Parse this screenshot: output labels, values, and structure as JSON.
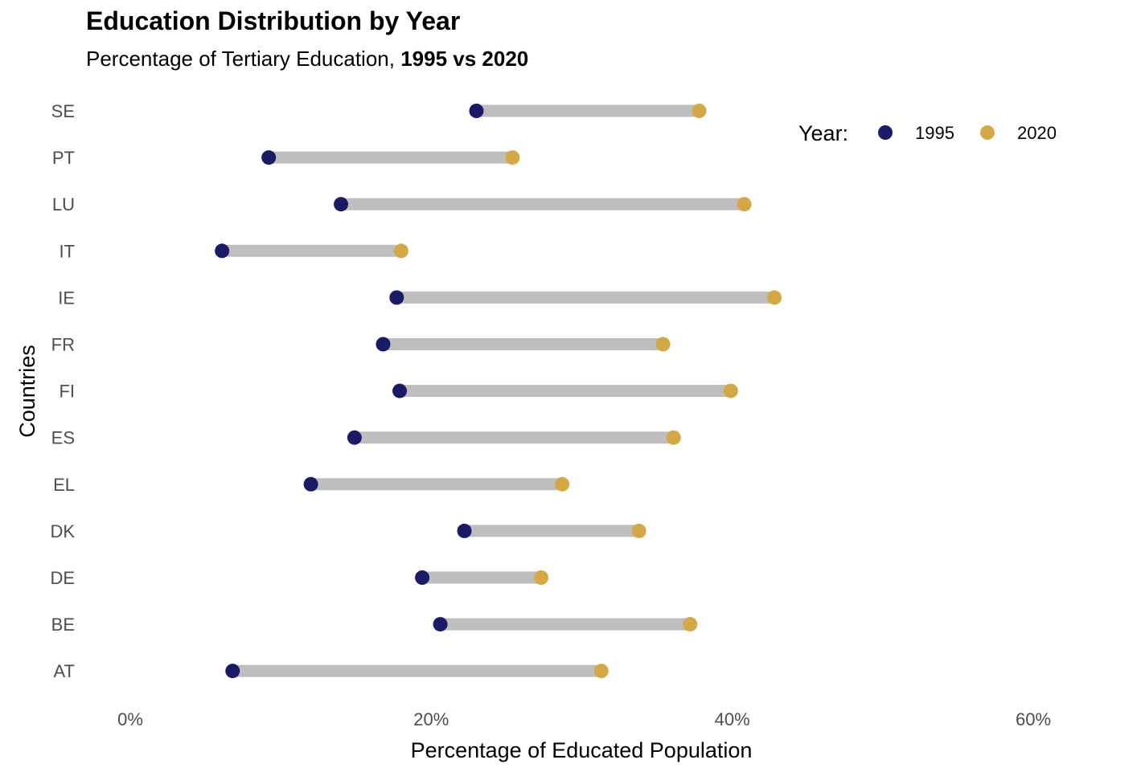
{
  "title": "Education Distribution by Year",
  "subtitle_plain": "Percentage of Tertiary Education, ",
  "subtitle_bold": "1995 vs 2020",
  "chart_data": {
    "type": "dumbbell",
    "title": "Education Distribution by Year",
    "subtitle": "Percentage of Tertiary Education, 1995 vs 2020",
    "xlabel": "Percentage of Educated Population",
    "ylabel": "Countries",
    "xlim": [
      -3,
      61
    ],
    "x_ticks": [
      0,
      20,
      40,
      60
    ],
    "x_tick_labels": [
      "0%",
      "20%",
      "40%",
      "60%"
    ],
    "grid": false,
    "legend": {
      "title": "Year:",
      "position": "top-right",
      "entries": [
        "1995",
        "2020"
      ]
    },
    "colors": {
      "1995": "#1a1a66",
      "2020": "#d4a843",
      "segment": "#bebebe"
    },
    "categories": [
      "SE",
      "PT",
      "LU",
      "IT",
      "IE",
      "FR",
      "FI",
      "ES",
      "EL",
      "DK",
      "DE",
      "BE",
      "AT"
    ],
    "series": [
      {
        "name": "1995",
        "values": [
          23.0,
          9.2,
          14.0,
          6.1,
          17.7,
          16.8,
          17.9,
          14.9,
          12.0,
          22.2,
          19.4,
          20.6,
          6.8
        ]
      },
      {
        "name": "2020",
        "values": [
          37.8,
          25.4,
          40.8,
          18.0,
          42.8,
          35.4,
          39.9,
          36.1,
          28.7,
          33.8,
          27.3,
          37.2,
          31.3
        ]
      }
    ]
  }
}
